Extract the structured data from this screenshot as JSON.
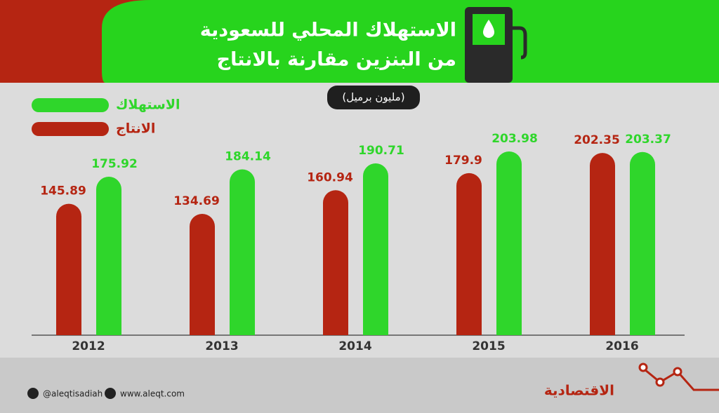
{
  "chart_data": {
    "type": "bar",
    "title": "الاستهلاك المحلي للسعودية",
    "subtitle": "من البنزين مقارنة بالانتاج",
    "unit_label": "(مليون برميل)",
    "categories": [
      "2012",
      "2013",
      "2014",
      "2015",
      "2016"
    ],
    "series": [
      {
        "name": "الانتاج",
        "color": "#b52512",
        "values": [
          145.89,
          134.69,
          160.94,
          179.9,
          202.35
        ]
      },
      {
        "name": "الاستهلاك",
        "color": "#2fd62b",
        "values": [
          175.92,
          184.14,
          190.71,
          203.98,
          203.37
        ]
      }
    ]
  },
  "footer": {
    "twitter": "@aleqtisadiah",
    "website": "www.aleqt.com",
    "logo": "الاقتصادية"
  }
}
